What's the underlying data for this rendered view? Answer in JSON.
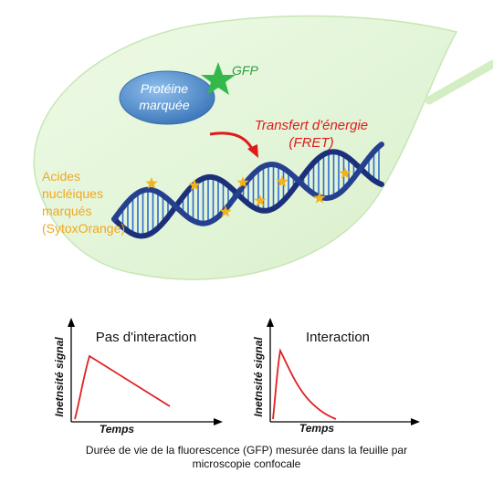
{
  "diagram": {
    "protein_label_line1": "Protéine",
    "protein_label_line2": "marquée",
    "gfp_label": "GFP",
    "fret_label_line1": "Transfert  d'énergie",
    "fret_label_line2": "(FRET)",
    "nucleic_label": [
      "Acides",
      "nucléiques",
      "marqués",
      "(SytoxOrange)"
    ]
  },
  "charts": [
    {
      "title": "Pas d'interaction",
      "ylabel": "Inetnsité signal",
      "xlabel": "Temps",
      "decay": "slow"
    },
    {
      "title": "Interaction",
      "ylabel": "Inetnsité signal",
      "xlabel": "Temps",
      "decay": "fast"
    }
  ],
  "caption": {
    "line1": "Durée de vie de la fluorescence (GFP) mesurée dans la feuille par",
    "line2": "microscopie confocale"
  },
  "colors": {
    "leaf": "#e4f6d8",
    "leaf_edge": "#c9e8b8",
    "protein": "#4a86c8",
    "gfp_star": "#35b84a",
    "fret": "#e01b1b",
    "dna": "#1f3d8f",
    "nucleic_star": "#f2b21e",
    "curve": "#e02020"
  }
}
